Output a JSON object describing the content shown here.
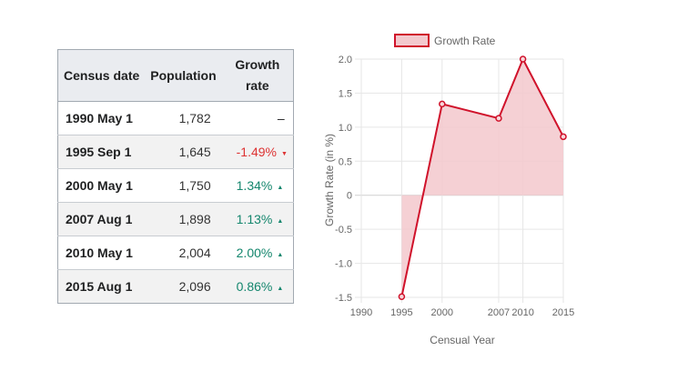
{
  "table": {
    "headers": [
      "Census date",
      "Population",
      "Growth\nrate"
    ],
    "header_date": "Census date",
    "header_population": "Population",
    "header_rate_line1": "Growth",
    "header_rate_line2": "rate",
    "rows": [
      {
        "date": "1990 May 1",
        "population": "1,782",
        "rate": "–",
        "trend": "none"
      },
      {
        "date": "1995 Sep 1",
        "population": "1,645",
        "rate": "-1.49%",
        "trend": "down"
      },
      {
        "date": "2000 May 1",
        "population": "1,750",
        "rate": "1.34%",
        "trend": "up"
      },
      {
        "date": "2007 Aug 1",
        "population": "1,898",
        "rate": "1.13%",
        "trend": "up"
      },
      {
        "date": "2010 May 1",
        "population": "2,004",
        "rate": "2.00%",
        "trend": "up"
      },
      {
        "date": "2015 Aug 1",
        "population": "2,096",
        "rate": "0.86%",
        "trend": "up"
      }
    ],
    "colors": {
      "negative": "#dd3333",
      "positive": "#14866d"
    },
    "icons": {
      "down": "triangle-down-icon",
      "up": "triangle-up-icon"
    }
  },
  "chart_data": {
    "type": "area",
    "x": [
      "1990",
      "1995",
      "2000",
      "2007",
      "2010",
      "2015"
    ],
    "series": [
      {
        "name": "Growth Rate",
        "values": [
          null,
          -1.49,
          1.34,
          1.13,
          2.0,
          0.86
        ]
      }
    ],
    "xlabel": "Censual Year",
    "ylabel": "Growth Rate (in %)",
    "ylim": [
      -1.5,
      2.0
    ],
    "yticks": [
      "2.0",
      "1.5",
      "1.0",
      "0.5",
      "0",
      "-0.5",
      "-1.0",
      "-1.5"
    ],
    "grid": true,
    "legend_position": "top",
    "colors": {
      "line": "#d0122b",
      "fill": "#f3c8cd",
      "grid": "#e6e6e6",
      "zero": "#cfcfcf"
    }
  }
}
